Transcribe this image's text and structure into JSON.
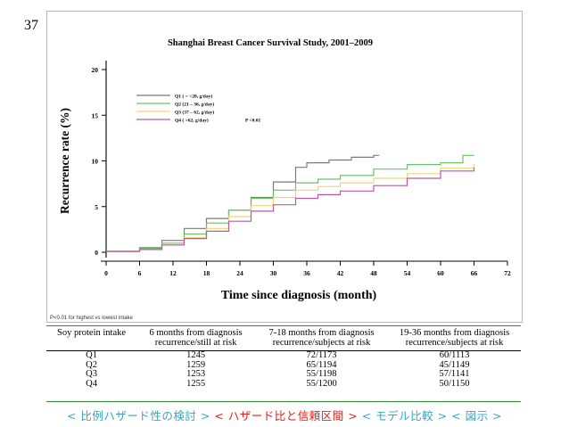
{
  "slide_number": "37",
  "chart_data": {
    "type": "line",
    "title": "Shanghai Breast Cancer Survival Study, 2001–2009",
    "xlabel": "Time since diagnosis (month)",
    "ylabel": "Recurrence rate (%)",
    "xlim": [
      0,
      72
    ],
    "ylim": [
      0,
      20
    ],
    "x_ticks": [
      "0",
      "6",
      "12",
      "18",
      "24",
      "30",
      "36",
      "42",
      "48",
      "54",
      "60",
      "66",
      "72"
    ],
    "y_ticks": [
      "0",
      "5",
      "10",
      "15",
      "20"
    ],
    "legend_position": "top-left",
    "annotation": "P <0.01",
    "series": [
      {
        "name": "Q1 ( = <20, g/day)",
        "color": "#7a7a7a",
        "x": [
          0,
          6,
          10,
          14,
          18,
          22,
          26,
          30,
          34,
          36,
          40,
          44,
          48,
          49
        ],
        "y": [
          0.1,
          0.5,
          1.3,
          2.6,
          3.7,
          4.6,
          6.0,
          7.7,
          9.3,
          9.8,
          10.1,
          10.4,
          10.6,
          10.6
        ]
      },
      {
        "name": "Q2 (21 – 36, g/day)",
        "color": "#6fbf6a",
        "x": [
          0,
          6,
          10,
          14,
          18,
          22,
          26,
          30,
          34,
          38,
          42,
          48,
          54,
          60,
          64,
          66
        ],
        "y": [
          0.1,
          0.4,
          1.0,
          2.0,
          3.2,
          4.6,
          5.9,
          6.8,
          7.6,
          8.0,
          8.4,
          9.1,
          9.6,
          9.8,
          10.6,
          10.6
        ]
      },
      {
        "name": "Q3 (37 – 62, g/day)",
        "color": "#f2d27a",
        "x": [
          0,
          6,
          10,
          14,
          18,
          22,
          26,
          30,
          34,
          38,
          42,
          48,
          54,
          60,
          66
        ],
        "y": [
          0.1,
          0.3,
          0.8,
          1.6,
          2.6,
          3.9,
          5.1,
          6.0,
          6.8,
          7.2,
          7.6,
          8.1,
          8.6,
          9.2,
          9.7
        ]
      },
      {
        "name": "Q4 ( >62, g/day)",
        "color": "#b75aa6",
        "x": [
          0,
          6,
          10,
          14,
          18,
          22,
          26,
          30,
          34,
          38,
          42,
          48,
          54,
          60,
          66
        ],
        "y": [
          0.1,
          0.3,
          0.8,
          1.5,
          2.3,
          3.4,
          4.5,
          5.2,
          5.9,
          6.3,
          6.7,
          7.3,
          8.1,
          8.9,
          9.3
        ]
      }
    ]
  },
  "footnote": "P<0.01 for highest vs lowest intake",
  "table": {
    "headers": [
      {
        "l1": "Soy protein intake",
        "l2": ""
      },
      {
        "l1": "6 months from diagnosis",
        "l2": "recurrence/still at risk"
      },
      {
        "l1": "7-18 months from diagnosis",
        "l2": "recurrence/subjects at risk"
      },
      {
        "l1": "19-36 months from diagnosis",
        "l2": "recurrence/subjects at risk"
      }
    ],
    "rows": [
      [
        "Q1",
        "1245",
        "72/1173",
        "60/1113"
      ],
      [
        "Q2",
        "1259",
        "65/1194",
        "45/1149"
      ],
      [
        "Q3",
        "1253",
        "55/1198",
        "57/1141"
      ],
      [
        "Q4",
        "1255",
        "55/1200",
        "50/1150"
      ]
    ]
  },
  "nav": {
    "item1": "< 比例ハザード性の検討 >",
    "item2": "< ハザード比と信頼区間 >",
    "item3": "< モデル比較 >",
    "item4": "< 図示 >",
    "active_color": "#e0211b",
    "normal_color": "#3aa3c4"
  }
}
